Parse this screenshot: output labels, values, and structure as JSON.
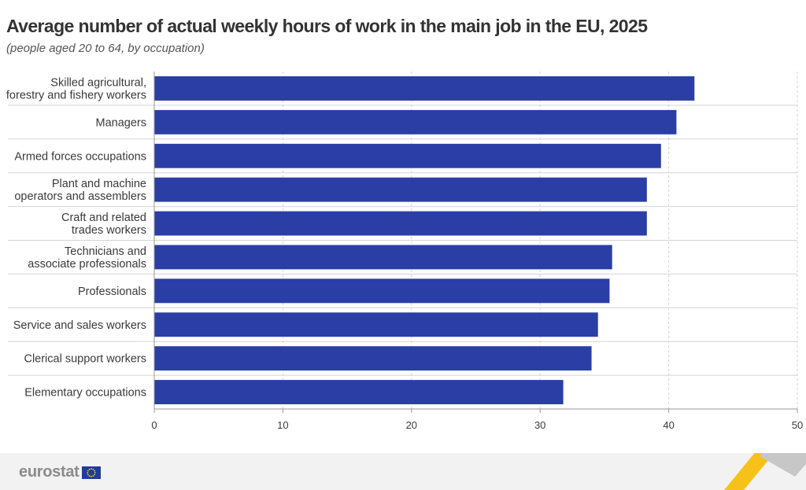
{
  "title": "Average number of actual weekly hours of work in the main job in the EU, 2025",
  "subtitle": "(people aged 20 to 64, by occupation)",
  "colors": {
    "bar": "#2b3ea6",
    "grid": "#d4d4d4",
    "axis": "#999999",
    "text": "#3a3a3a"
  },
  "chart_data": {
    "type": "bar",
    "orientation": "horizontal",
    "title": "Average number of actual weekly hours of work in the main job in the EU, 2025",
    "subtitle": "(people aged 20 to 64, by occupation)",
    "xlabel": "",
    "ylabel": "",
    "xlim": [
      0,
      50
    ],
    "x_ticks": [
      0,
      10,
      20,
      30,
      40,
      50
    ],
    "grid": "vertical dashed",
    "categories": [
      [
        "Skilled agricultural,",
        "forestry and fishery workers"
      ],
      [
        "Managers"
      ],
      [
        "Armed forces occupations"
      ],
      [
        "Plant and machine",
        "operators and assemblers"
      ],
      [
        "Craft and related",
        "trades workers"
      ],
      [
        "Technicians and",
        "associate professionals"
      ],
      [
        "Professionals"
      ],
      [
        "Service and sales workers"
      ],
      [
        "Clerical support workers"
      ],
      [
        "Elementary occupations"
      ]
    ],
    "values": [
      42.0,
      40.6,
      39.4,
      38.3,
      38.3,
      35.6,
      35.4,
      34.5,
      34.0,
      31.8
    ]
  },
  "footer": {
    "logo_text": "eurostat",
    "icons": [
      "eu-flag-icon",
      "corner-ribbon-decoration"
    ]
  }
}
